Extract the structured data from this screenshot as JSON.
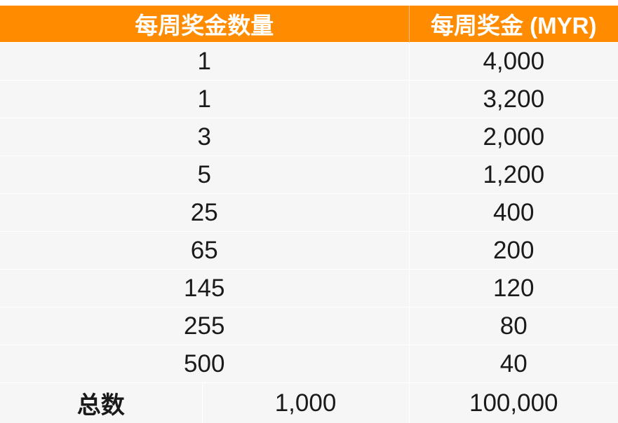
{
  "header": {
    "col1": "每周奖金数量",
    "col2": "每周奖金 (MYR)"
  },
  "rows": [
    {
      "count": "1",
      "prize": "4,000"
    },
    {
      "count": "1",
      "prize": "3,200"
    },
    {
      "count": "3",
      "prize": "2,000"
    },
    {
      "count": "5",
      "prize": "1,200"
    },
    {
      "count": "25",
      "prize": "400"
    },
    {
      "count": "65",
      "prize": "200"
    },
    {
      "count": "145",
      "prize": "120"
    },
    {
      "count": "255",
      "prize": "80"
    },
    {
      "count": "500",
      "prize": "40"
    }
  ],
  "total": {
    "label": "总数",
    "count": "1,000",
    "prize": "100,000"
  },
  "colors": {
    "header_bg": "#FF8C00",
    "row_bg": "#f6f6f6"
  }
}
